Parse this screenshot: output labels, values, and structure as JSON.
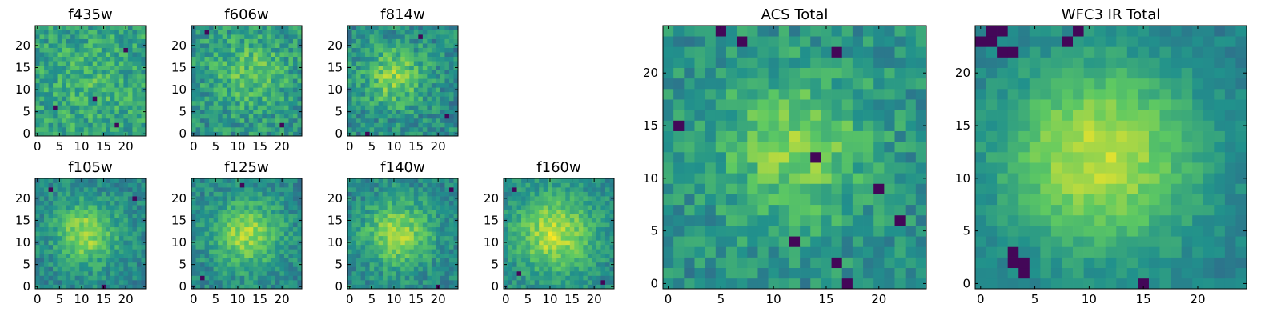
{
  "figure": {
    "layout": "7 small heatmap panels in a 2x4 grid (top-right slot empty) plus 2 large heatmap panels"
  },
  "colormap": {
    "name": "viridis",
    "stops": [
      "#440154",
      "#3b528b",
      "#21918c",
      "#5ec962",
      "#fde725"
    ]
  },
  "chart_data": [
    {
      "type": "heatmap",
      "title": "f435w",
      "grid_size": 25,
      "xlim": [
        0,
        24
      ],
      "ylim": [
        0,
        24
      ],
      "xticks": [
        0,
        5,
        10,
        15,
        20
      ],
      "yticks": [
        0,
        5,
        10,
        15,
        20
      ],
      "pattern": {
        "center": [
          12,
          12
        ],
        "sigma": 6,
        "amplitude": 0.08,
        "base": 0.58,
        "noise": 0.32,
        "seed": 11,
        "dark_pixels": [
          [
            13,
            8
          ],
          [
            18,
            2
          ],
          [
            4,
            6
          ],
          [
            20,
            19
          ]
        ]
      }
    },
    {
      "type": "heatmap",
      "title": "f606w",
      "grid_size": 25,
      "xlim": [
        0,
        24
      ],
      "ylim": [
        0,
        24
      ],
      "xticks": [
        0,
        5,
        10,
        15,
        20
      ],
      "yticks": [
        0,
        5,
        10,
        15,
        20
      ],
      "pattern": {
        "center": [
          13,
          14
        ],
        "sigma": 6,
        "amplitude": 0.2,
        "base": 0.52,
        "noise": 0.32,
        "seed": 23,
        "dark_pixels": [
          [
            3,
            23
          ],
          [
            20,
            2
          ]
        ]
      }
    },
    {
      "type": "heatmap",
      "title": "f814w",
      "grid_size": 25,
      "xlim": [
        0,
        24
      ],
      "ylim": [
        0,
        24
      ],
      "xticks": [
        0,
        5,
        10,
        15,
        20
      ],
      "yticks": [
        0,
        5,
        10,
        15,
        20
      ],
      "pattern": {
        "center": [
          10,
          13
        ],
        "sigma": 5,
        "amplitude": 0.32,
        "base": 0.48,
        "noise": 0.3,
        "seed": 37,
        "dark_pixels": [
          [
            4,
            0
          ],
          [
            16,
            22
          ],
          [
            22,
            4
          ]
        ]
      }
    },
    {
      "type": "heatmap",
      "title": "f105w",
      "grid_size": 25,
      "xlim": [
        0,
        24
      ],
      "ylim": [
        0,
        24
      ],
      "xticks": [
        0,
        5,
        10,
        15,
        20
      ],
      "yticks": [
        0,
        5,
        10,
        15,
        20
      ],
      "pattern": {
        "center": [
          11,
          12
        ],
        "sigma": 5,
        "amplitude": 0.38,
        "base": 0.46,
        "noise": 0.24,
        "seed": 41,
        "dark_pixels": [
          [
            3,
            22
          ],
          [
            15,
            0
          ],
          [
            22,
            20
          ]
        ]
      }
    },
    {
      "type": "heatmap",
      "title": "f125w",
      "grid_size": 25,
      "xlim": [
        0,
        24
      ],
      "ylim": [
        0,
        24
      ],
      "xticks": [
        0,
        5,
        10,
        15,
        20
      ],
      "yticks": [
        0,
        5,
        10,
        15,
        20
      ],
      "pattern": {
        "center": [
          12,
          12
        ],
        "sigma": 5.5,
        "amplitude": 0.38,
        "base": 0.46,
        "noise": 0.24,
        "seed": 53,
        "dark_pixels": [
          [
            11,
            23
          ],
          [
            2,
            2
          ]
        ]
      }
    },
    {
      "type": "heatmap",
      "title": "f140w",
      "grid_size": 25,
      "xlim": [
        0,
        24
      ],
      "ylim": [
        0,
        24
      ],
      "xticks": [
        0,
        5,
        10,
        15,
        20
      ],
      "yticks": [
        0,
        5,
        10,
        15,
        20
      ],
      "pattern": {
        "center": [
          11,
          12
        ],
        "sigma": 5.5,
        "amplitude": 0.38,
        "base": 0.46,
        "noise": 0.24,
        "seed": 67,
        "dark_pixels": [
          [
            23,
            22
          ],
          [
            20,
            0
          ]
        ]
      }
    },
    {
      "type": "heatmap",
      "title": "f160w",
      "grid_size": 25,
      "xlim": [
        0,
        24
      ],
      "ylim": [
        0,
        24
      ],
      "xticks": [
        0,
        5,
        10,
        15,
        20
      ],
      "yticks": [
        0,
        5,
        10,
        15,
        20
      ],
      "pattern": {
        "center": [
          11,
          12
        ],
        "sigma": 6,
        "amplitude": 0.42,
        "base": 0.48,
        "noise": 0.22,
        "seed": 79,
        "dark_pixels": [
          [
            2,
            22
          ],
          [
            3,
            3
          ],
          [
            22,
            1
          ]
        ]
      }
    },
    {
      "type": "heatmap",
      "title": "ACS Total",
      "grid_size": 25,
      "xlim": [
        0,
        24
      ],
      "ylim": [
        0,
        24
      ],
      "xticks": [
        0,
        5,
        10,
        15,
        20
      ],
      "yticks": [
        0,
        5,
        10,
        15,
        20
      ],
      "pattern": {
        "center": [
          12,
          13
        ],
        "sigma": 5,
        "amplitude": 0.3,
        "base": 0.5,
        "noise": 0.26,
        "seed": 97,
        "dark_pixels": [
          [
            5,
            24
          ],
          [
            7,
            23
          ],
          [
            1,
            15
          ],
          [
            16,
            2
          ],
          [
            17,
            0
          ],
          [
            12,
            4
          ],
          [
            20,
            9
          ],
          [
            16,
            22
          ],
          [
            22,
            6
          ],
          [
            14,
            12
          ]
        ]
      }
    },
    {
      "type": "heatmap",
      "title": "WFC3 IR Total",
      "grid_size": 25,
      "xlim": [
        0,
        24
      ],
      "ylim": [
        0,
        24
      ],
      "xticks": [
        0,
        5,
        10,
        15,
        20
      ],
      "yticks": [
        0,
        5,
        10,
        15,
        20
      ],
      "pattern": {
        "center": [
          11,
          12
        ],
        "sigma": 6.5,
        "amplitude": 0.48,
        "base": 0.42,
        "noise": 0.14,
        "seed": 113,
        "dark_pixels": [
          [
            0,
            23
          ],
          [
            1,
            23
          ],
          [
            1,
            24
          ],
          [
            2,
            22
          ],
          [
            3,
            22
          ],
          [
            8,
            23
          ],
          [
            9,
            24
          ],
          [
            3,
            2
          ],
          [
            4,
            2
          ],
          [
            3,
            3
          ],
          [
            4,
            1
          ],
          [
            15,
            0
          ],
          [
            2,
            24
          ]
        ]
      }
    }
  ]
}
